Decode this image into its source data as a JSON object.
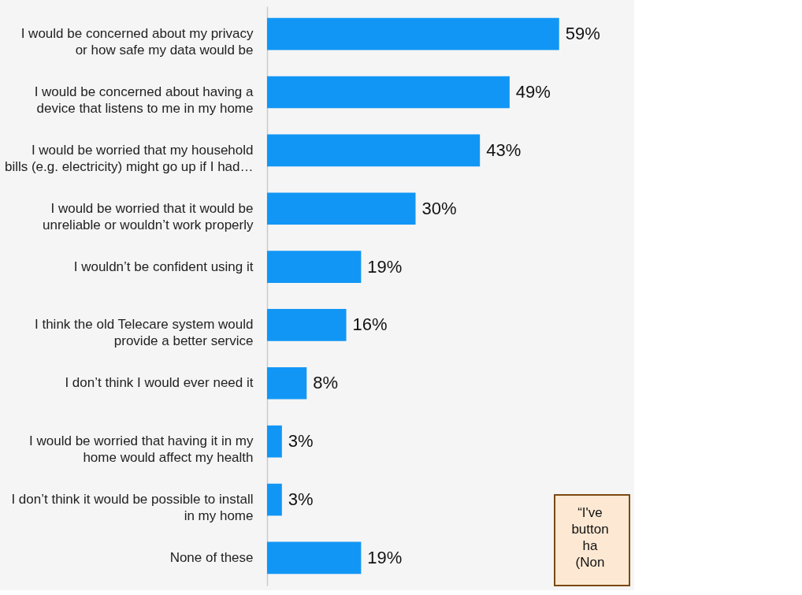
{
  "chart_data": {
    "type": "bar",
    "orientation": "horizontal",
    "grid": false,
    "categories": [
      "I would be concerned about my privacy\nor how safe my data would be",
      "I would be concerned about having a\ndevice that listens to me in my home",
      "I would be worried that my household\nbills (e.g. electricity) might go up if I had…",
      "I would be worried that it would be\nunreliable or wouldn’t work properly",
      "I wouldn’t be confident using it",
      "I think the old Telecare system would\nprovide a better service",
      "I don’t think I would ever need it",
      "I would be worried that having it in my\nhome would affect my health",
      "I don’t think it would be possible to install\nin my home",
      "None of these"
    ],
    "values": [
      59,
      49,
      43,
      30,
      19,
      16,
      8,
      3,
      3,
      19
    ],
    "value_labels": [
      "59%",
      "49%",
      "43%",
      "30%",
      "19%",
      "16%",
      "8%",
      "3%",
      "3%",
      "19%"
    ],
    "color": "#1196f5",
    "annotations": [
      "“I've\nbutton\nha\n(Non"
    ]
  }
}
